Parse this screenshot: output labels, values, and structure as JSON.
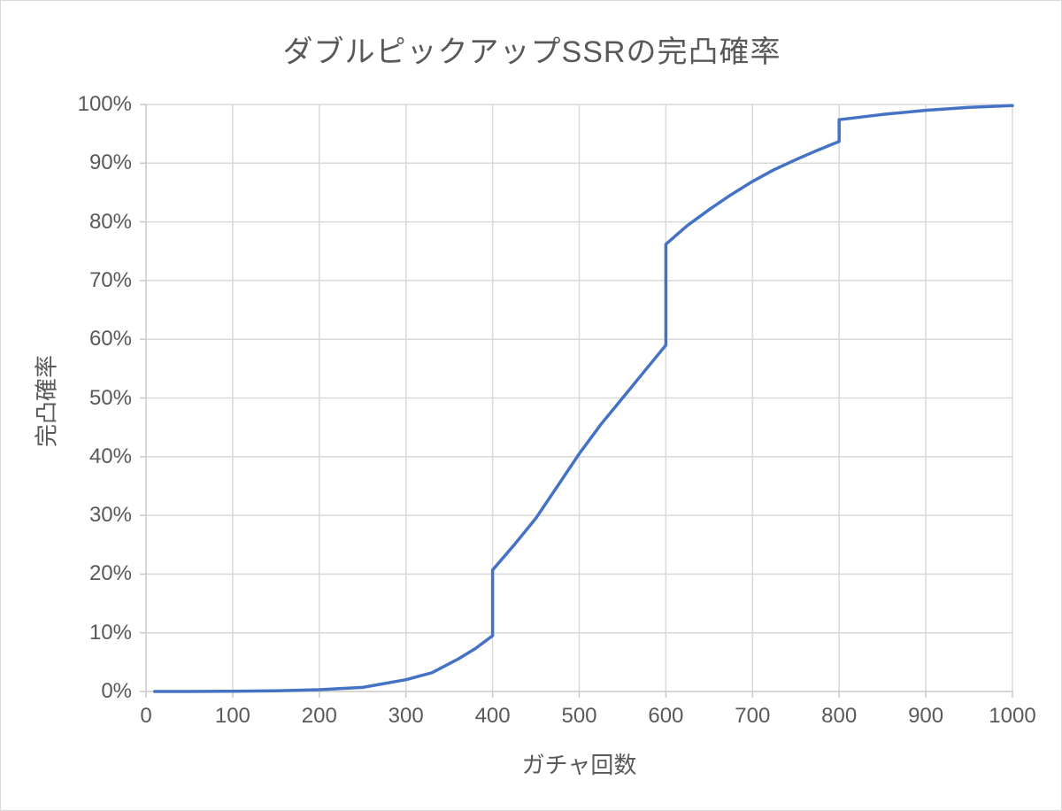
{
  "chart_data": {
    "type": "line",
    "title": "ダブルピックアップSSRの完凸確率",
    "xlabel": "ガチャ回数",
    "ylabel": "完凸確率",
    "xlim": [
      0,
      1000
    ],
    "ylim_percent": [
      0,
      100
    ],
    "grid": true,
    "legend": "none",
    "x_tick_values": [
      0,
      100,
      200,
      300,
      400,
      500,
      600,
      700,
      800,
      900,
      1000
    ],
    "x_tick_labels": [
      "0",
      "100",
      "200",
      "300",
      "400",
      "500",
      "600",
      "700",
      "800",
      "900",
      "1000"
    ],
    "y_tick_values": [
      0,
      10,
      20,
      30,
      40,
      50,
      60,
      70,
      80,
      90,
      100
    ],
    "y_tick_labels": [
      "0%",
      "10%",
      "20%",
      "30%",
      "40%",
      "50%",
      "60%",
      "70%",
      "80%",
      "90%",
      "100%"
    ],
    "colors": {
      "line": "#4472C4",
      "gridline": "#D9D9D9",
      "axis": "#C9C9C9",
      "text": "#595959",
      "background": "#FFFFFF"
    },
    "series": [
      {
        "points": [
          [
            10,
            0
          ],
          [
            50,
            0
          ],
          [
            100,
            0.05
          ],
          [
            150,
            0.1
          ],
          [
            200,
            0.3
          ],
          [
            250,
            0.7
          ],
          [
            300,
            2.0
          ],
          [
            330,
            3.2
          ],
          [
            360,
            5.5
          ],
          [
            380,
            7.3
          ],
          [
            400,
            9.5
          ],
          [
            400,
            20.7
          ],
          [
            425,
            25.0
          ],
          [
            450,
            29.5
          ],
          [
            475,
            35.0
          ],
          [
            500,
            40.5
          ],
          [
            525,
            45.5
          ],
          [
            550,
            50.0
          ],
          [
            575,
            54.5
          ],
          [
            600,
            59.0
          ],
          [
            600,
            76.2
          ],
          [
            625,
            79.4
          ],
          [
            650,
            82.1
          ],
          [
            675,
            84.6
          ],
          [
            700,
            86.9
          ],
          [
            725,
            88.9
          ],
          [
            750,
            90.6
          ],
          [
            775,
            92.2
          ],
          [
            800,
            93.7
          ],
          [
            800,
            97.4
          ],
          [
            850,
            98.3
          ],
          [
            900,
            99.0
          ],
          [
            950,
            99.5
          ],
          [
            1000,
            99.8
          ]
        ]
      }
    ]
  }
}
